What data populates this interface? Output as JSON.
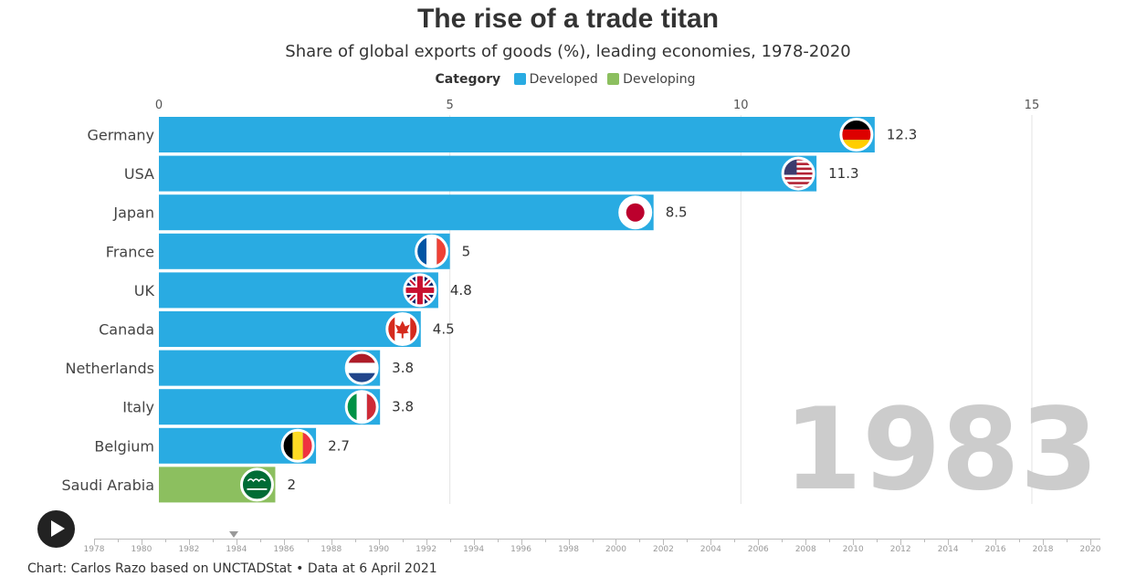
{
  "header": {
    "title": "The rise of a trade titan",
    "subtitle": "Share of global exports of goods (%), leading economies, 1978-2020"
  },
  "legend": {
    "title": "Category",
    "items": [
      {
        "label": "Developed",
        "color": "#29abe2"
      },
      {
        "label": "Developing",
        "color": "#8cbf5f"
      }
    ]
  },
  "chart_data": {
    "type": "bar",
    "orientation": "horizontal",
    "title": "The rise of a trade titan",
    "subtitle": "Share of global exports of goods (%), leading economies, 1978-2020",
    "current_year": "1983",
    "xlim": [
      0,
      15
    ],
    "x_ticks": [
      0,
      5,
      10,
      15
    ],
    "grid": true,
    "legend_position": "top-center",
    "categories": [
      "Germany",
      "USA",
      "Japan",
      "France",
      "UK",
      "Canada",
      "Netherlands",
      "Italy",
      "Belgium",
      "Saudi Arabia"
    ],
    "values": [
      12.3,
      11.3,
      8.5,
      5,
      4.8,
      4.5,
      3.8,
      3.8,
      2.7,
      2
    ],
    "value_labels": [
      "12.3",
      "11.3",
      "8.5",
      "5",
      "4.8",
      "4.5",
      "3.8",
      "3.8",
      "2.7",
      "2"
    ],
    "category_type": [
      "Developed",
      "Developed",
      "Developed",
      "Developed",
      "Developed",
      "Developed",
      "Developed",
      "Developed",
      "Developed",
      "Developing"
    ],
    "flag_icons": [
      "germany-flag-icon",
      "usa-flag-icon",
      "japan-flag-icon",
      "france-flag-icon",
      "uk-flag-icon",
      "canada-flag-icon",
      "netherlands-flag-icon",
      "italy-flag-icon",
      "belgium-flag-icon",
      "saudi-arabia-flag-icon"
    ]
  },
  "timeline": {
    "labels": [
      "1978",
      "1980",
      "1982",
      "1984",
      "1986",
      "1988",
      "1990",
      "1992",
      "1994",
      "1996",
      "1998",
      "2000",
      "2002",
      "2004",
      "2006",
      "2008",
      "2010",
      "2012",
      "2014",
      "2016",
      "2018",
      "2020"
    ],
    "start_year": 1978,
    "end_year": 2020,
    "current_year": 1983.9
  },
  "controls": {
    "play_icon": "play-icon"
  },
  "footer": {
    "source": "Chart: Carlos Razo based on UNCTADStat • Data at 6 April 2021"
  }
}
